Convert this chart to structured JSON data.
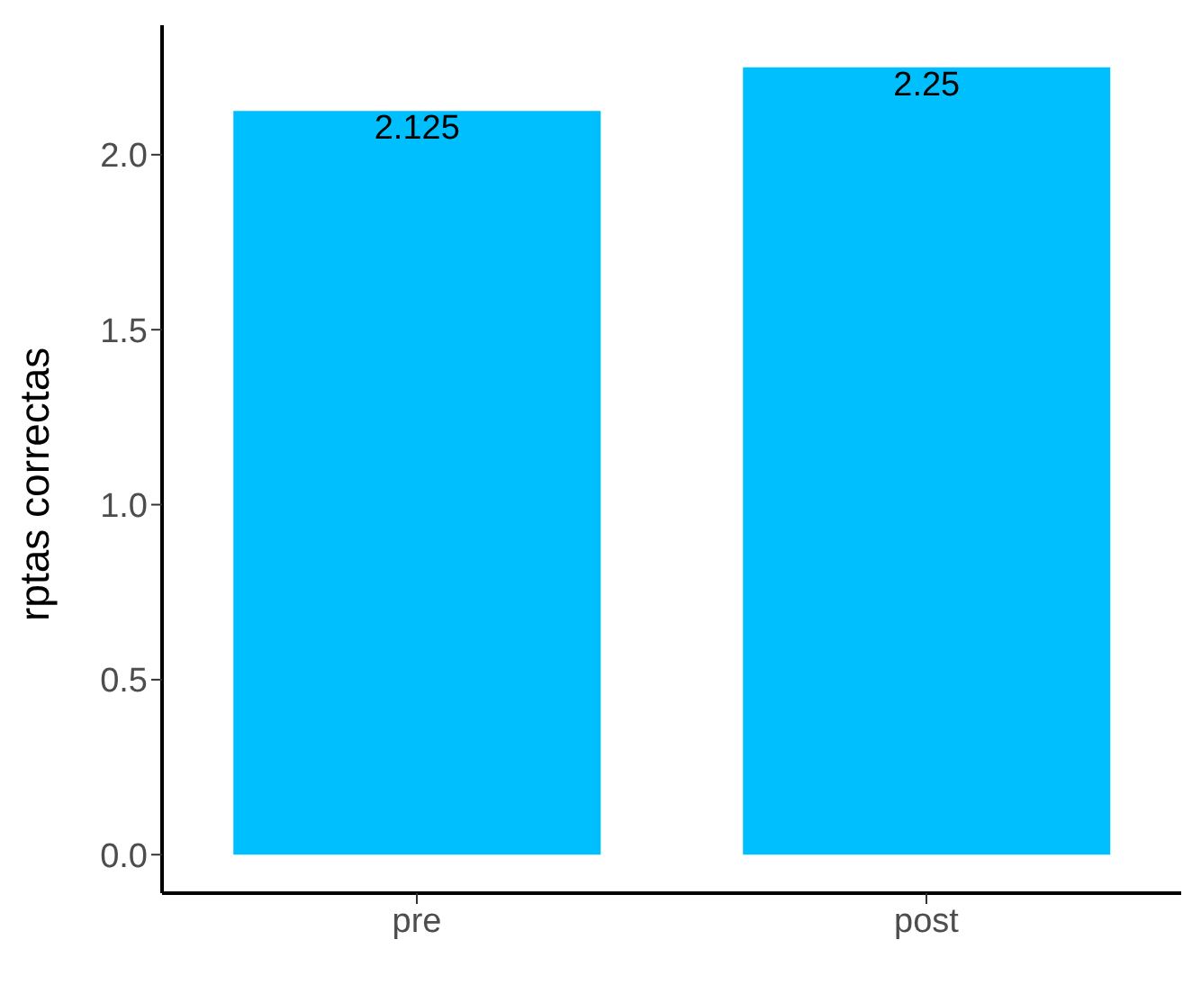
{
  "chart_data": {
    "type": "bar",
    "ylabel": "rptas correctas",
    "categories": [
      "pre",
      "post"
    ],
    "series": [
      {
        "color": "#00bfff",
        "values": [
          2.125,
          2.25
        ]
      }
    ],
    "ylim": [
      -0.11,
      2.37
    ],
    "yticks": [
      "0.0",
      "0.5",
      "1.0",
      "1.5",
      "2.0"
    ],
    "grid": false,
    "legend": false,
    "data_labels": true
  }
}
